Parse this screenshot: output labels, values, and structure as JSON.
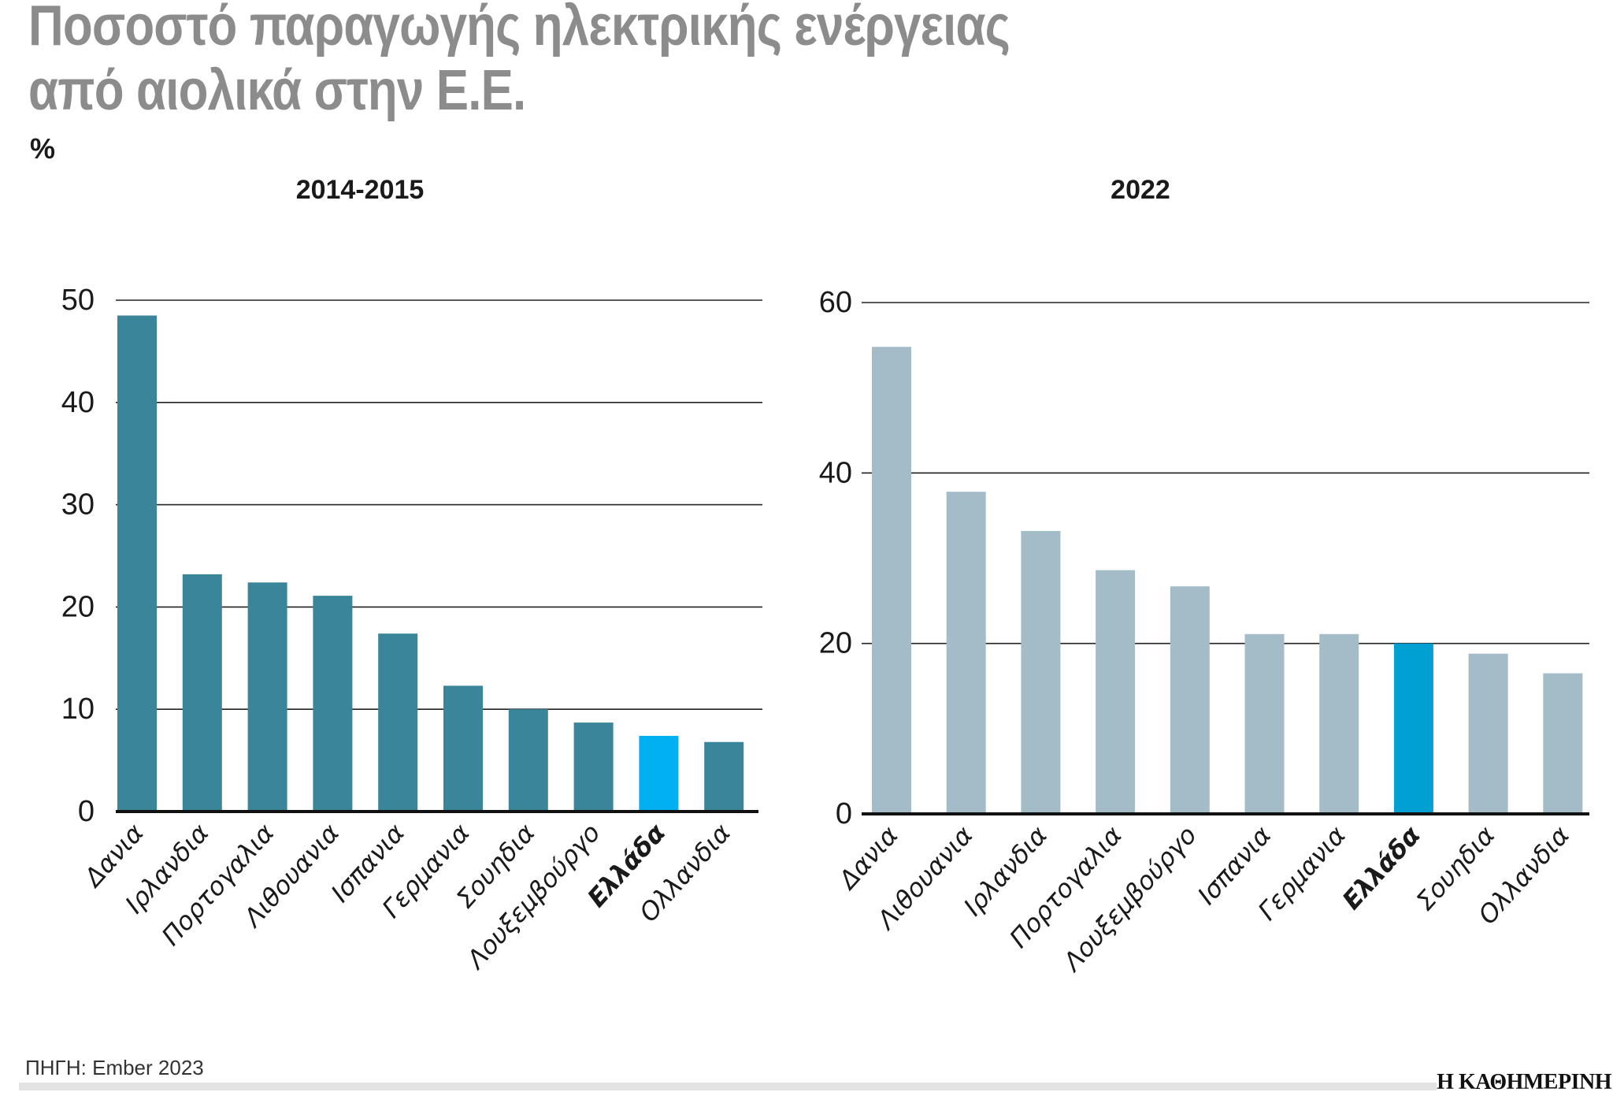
{
  "title_line1": "Ποσοστό παραγωγής ηλεκτρικής ενέργειας",
  "title_line2": "από αιολικά στην Ε.Ε.",
  "unit": "%",
  "source": "ΠΗΓΗ: Ember 2023",
  "logo": "Η ΚΑΘΗΜΕΡΙΝΗ",
  "chart_data": [
    {
      "type": "bar",
      "title": "2014-2015",
      "categories": [
        "Δανια",
        "Ιρλανδια",
        "Πορτογαλια",
        "Λιθουανια",
        "Ισπανια",
        "Γερμανια",
        "Σουηδια",
        "Λουξεμβούργο",
        "Ελλάδα",
        "Ολλανδια"
      ],
      "values": [
        48.5,
        23.2,
        22.4,
        21.1,
        17.4,
        12.3,
        10.0,
        8.7,
        7.4,
        6.8
      ],
      "highlight": "Ελλάδα",
      "ylim": [
        0,
        50
      ],
      "yticks": [
        0,
        10,
        20,
        30,
        40,
        50
      ],
      "grid": true,
      "bar_color": "#3a8599",
      "highlight_color": "#00b0f0"
    },
    {
      "type": "bar",
      "title": "2022",
      "categories": [
        "Δανια",
        "Λιθουανια",
        "Ιρλανδια",
        "Πορτογαλια",
        "Λουξεμβούργο",
        "Ισπανια",
        "Γερμανια",
        "Ελλάδα",
        "Σουηδια",
        "Ολλανδια"
      ],
      "values": [
        54.8,
        37.8,
        33.2,
        28.6,
        26.7,
        21.1,
        21.1,
        20.0,
        18.8,
        16.5
      ],
      "highlight": "Ελλάδα",
      "ylim": [
        0,
        60
      ],
      "yticks": [
        0,
        20,
        40,
        60
      ],
      "grid": true,
      "bar_color": "#a3bcc7",
      "highlight_color": "#00a0d2"
    }
  ]
}
